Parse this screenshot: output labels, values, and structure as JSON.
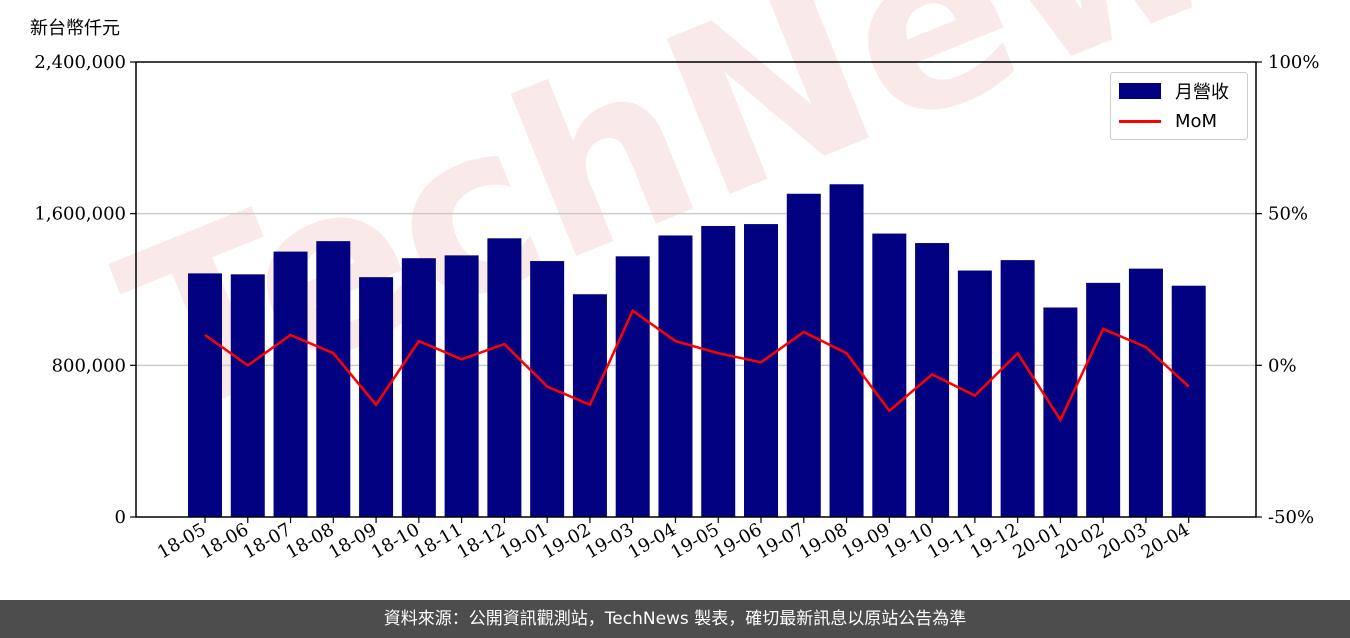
{
  "unit_label": "新台幣仟元",
  "footer_text": "資料來源：公開資訊觀測站，TechNews 製表，確切最新訊息以原站公告為準",
  "watermark_text": "TechNews",
  "colors": {
    "bar": "#000080",
    "line": "#ff0000",
    "footer_bg": "#4d4d4d"
  },
  "chart_data": {
    "type": "bar",
    "categories": [
      "18-05",
      "18-06",
      "18-07",
      "18-08",
      "18-09",
      "18-10",
      "18-11",
      "18-12",
      "19-01",
      "19-02",
      "19-03",
      "19-04",
      "19-05",
      "19-06",
      "19-07",
      "19-08",
      "19-09",
      "19-10",
      "19-11",
      "19-12",
      "20-01",
      "20-02",
      "20-03",
      "20-04"
    ],
    "series": [
      {
        "name": "月營收",
        "type": "bar",
        "axis": "left",
        "values": [
          1285000,
          1280000,
          1400000,
          1455000,
          1265000,
          1365000,
          1380000,
          1470000,
          1350000,
          1175000,
          1375000,
          1485000,
          1535000,
          1545000,
          1705000,
          1755000,
          1495000,
          1445000,
          1300000,
          1355000,
          1105000,
          1235000,
          1310000,
          1220000
        ]
      },
      {
        "name": "MoM",
        "type": "line",
        "axis": "right",
        "unit": "%",
        "values": [
          10,
          0,
          10,
          4,
          -13,
          8,
          2,
          7,
          -7,
          -13,
          18,
          8,
          4,
          1,
          11,
          4,
          -15,
          -3,
          -10,
          4,
          -18,
          12,
          6,
          -7
        ]
      }
    ],
    "ylim_left": [
      0,
      2400000
    ],
    "yticks_left": [
      "0",
      "800,000",
      "1,600,000",
      "2,400,000"
    ],
    "yticks_left_values": [
      0,
      800000,
      1600000,
      2400000
    ],
    "ylim_right": [
      -50,
      100
    ],
    "yticks_right": [
      "-50%",
      "0%",
      "50%",
      "100%"
    ],
    "yticks_right_values": [
      -50,
      0,
      50,
      100
    ],
    "grid": "horizontal",
    "legend_position": "top-right"
  }
}
